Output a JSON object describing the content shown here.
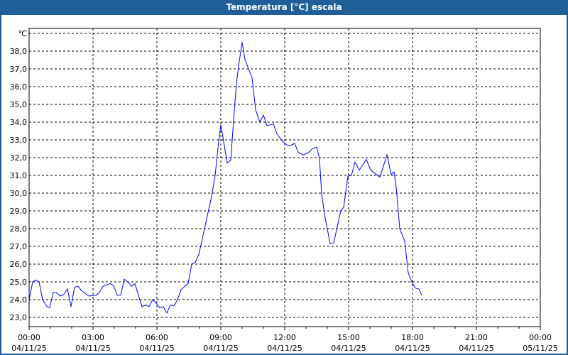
{
  "window": {
    "title": "Temperatura [°C] escala"
  },
  "chart_data": {
    "type": "line",
    "title": "Temperatura [°C] escala",
    "ylabel": "℃",
    "ylim": [
      22.5,
      39.2
    ],
    "yticks": [
      "23,0",
      "24,0",
      "25,0",
      "26,0",
      "27,0",
      "28,0",
      "29,0",
      "30,0",
      "31,0",
      "32,0",
      "33,0",
      "34,0",
      "35,0",
      "36,0",
      "37,0",
      "38,0"
    ],
    "xlim": [
      "00:00",
      "24:00"
    ],
    "xticks": [
      {
        "time": "00:00",
        "date": "04/11/25"
      },
      {
        "time": "03:00",
        "date": "04/11/25"
      },
      {
        "time": "06:00",
        "date": "04/11/25"
      },
      {
        "time": "09:00",
        "date": "04/11/25"
      },
      {
        "time": "12:00",
        "date": "04/11/25"
      },
      {
        "time": "15:00",
        "date": "04/11/25"
      },
      {
        "time": "18:00",
        "date": "04/11/25"
      },
      {
        "time": "21:00",
        "date": "04/11/25"
      },
      {
        "time": "00:00",
        "date": "05/11/25"
      }
    ],
    "grid": true,
    "line_color": "#0000ff",
    "series": [
      {
        "x": [
          "00:00",
          "00:10",
          "00:18",
          "00:28",
          "00:38",
          "00:50",
          "00:58",
          "01:08",
          "01:16",
          "01:28",
          "01:38",
          "01:48",
          "01:58",
          "02:08",
          "02:18",
          "02:28",
          "02:48",
          "03:08",
          "03:18",
          "03:28",
          "03:48",
          "03:58",
          "04:08",
          "04:18",
          "04:28",
          "04:38",
          "04:48",
          "04:58",
          "05:08",
          "05:18",
          "05:28",
          "05:38",
          "05:48",
          "05:58",
          "06:08",
          "06:18",
          "06:28",
          "06:38",
          "06:48",
          "06:58",
          "07:08",
          "07:18",
          "07:28",
          "07:38",
          "07:48",
          "07:58",
          "08:12",
          "08:24",
          "08:34",
          "08:44",
          "08:54",
          "09:00",
          "09:08",
          "09:18",
          "09:28",
          "09:36",
          "09:44",
          "09:50",
          "10:00",
          "10:08",
          "10:18",
          "10:28",
          "10:38",
          "10:50",
          "11:00",
          "11:10",
          "11:28",
          "11:38",
          "11:54",
          "12:08",
          "12:18",
          "12:28",
          "12:38",
          "12:52",
          "13:08",
          "13:18",
          "13:30",
          "13:38",
          "13:44",
          "13:54",
          "14:08",
          "14:18",
          "14:28",
          "14:38",
          "14:46",
          "14:58",
          "15:08",
          "15:18",
          "15:30",
          "15:50",
          "16:02",
          "16:12",
          "16:28",
          "16:48",
          "17:00",
          "17:08",
          "17:14",
          "17:24",
          "17:38",
          "17:48",
          "17:58",
          "18:08",
          "18:18",
          "18:26"
        ],
        "values": [
          24.0,
          25.0,
          25.1,
          25.0,
          24.0,
          23.6,
          23.55,
          24.4,
          24.4,
          24.2,
          24.3,
          24.6,
          23.6,
          24.7,
          24.75,
          24.5,
          24.2,
          24.25,
          24.4,
          24.75,
          24.9,
          24.8,
          24.25,
          24.25,
          25.15,
          25.0,
          24.75,
          24.9,
          24.25,
          23.6,
          23.7,
          23.6,
          24.0,
          23.8,
          23.55,
          23.6,
          23.25,
          23.7,
          23.65,
          24.0,
          24.55,
          24.75,
          24.9,
          26.0,
          26.1,
          26.55,
          27.8,
          28.9,
          29.8,
          31.0,
          32.9,
          33.85,
          32.9,
          31.7,
          31.85,
          34.1,
          36.2,
          37.15,
          38.5,
          37.55,
          37.0,
          36.5,
          34.7,
          34.0,
          34.4,
          33.8,
          33.9,
          33.35,
          32.9,
          32.7,
          32.7,
          32.8,
          32.3,
          32.15,
          32.3,
          32.5,
          32.6,
          31.95,
          29.95,
          28.6,
          27.15,
          27.2,
          28.1,
          29.0,
          29.2,
          30.95,
          31.0,
          31.75,
          31.3,
          31.9,
          31.3,
          31.15,
          30.9,
          32.15,
          31.05,
          31.2,
          30.35,
          28.0,
          27.3,
          25.5,
          25.0,
          24.65,
          24.6,
          24.25
        ]
      }
    ]
  }
}
